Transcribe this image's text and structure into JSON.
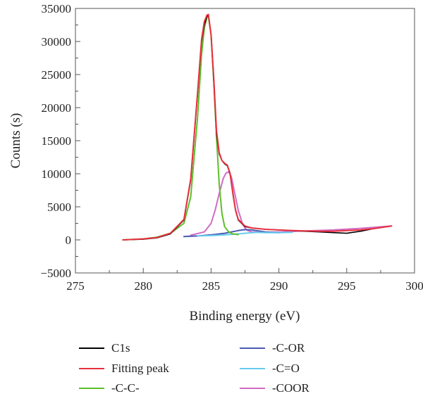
{
  "chart_data": {
    "type": "line",
    "xlabel": "Binding energy (eV)",
    "ylabel": "Counts (s)",
    "xlim": [
      275,
      300
    ],
    "ylim": [
      -5000,
      35000
    ],
    "xticks": [
      275,
      280,
      285,
      290,
      295,
      300
    ],
    "yticks": [
      -5000,
      0,
      5000,
      10000,
      15000,
      20000,
      25000,
      30000,
      35000
    ],
    "xtick_labels": [
      "275",
      "280",
      "285",
      "290",
      "295",
      "300"
    ],
    "ytick_labels": [
      "−5000",
      "0",
      "5000",
      "10000",
      "15000",
      "20000",
      "25000",
      "30000",
      "35000"
    ],
    "legend_position": "bottom",
    "series": [
      {
        "name": "C1s",
        "color": "#000000",
        "x": [
          278.5,
          280,
          281,
          282,
          283,
          283.5,
          284,
          284.3,
          284.5,
          284.7,
          284.8,
          285,
          285.2,
          285.4,
          285.6,
          285.8,
          286,
          286.2,
          286.4,
          286.6,
          286.8,
          287,
          287.5,
          288,
          288.5,
          289,
          290,
          291,
          292,
          293,
          294,
          295,
          296,
          297,
          298.3
        ],
        "y": [
          0,
          100,
          300,
          900,
          3000,
          9000,
          22000,
          30000,
          32500,
          33800,
          34000,
          31000,
          24000,
          16000,
          13000,
          12000,
          11500,
          11200,
          10000,
          7000,
          4500,
          3000,
          2000,
          1800,
          1700,
          1600,
          1500,
          1400,
          1300,
          1200,
          1100,
          1000,
          1300,
          1700,
          2100
        ]
      },
      {
        "name": "Fitting peak",
        "color": "#e8313f",
        "x": [
          278.5,
          280,
          281,
          282,
          283,
          283.5,
          284,
          284.3,
          284.5,
          284.7,
          284.8,
          285,
          285.2,
          285.4,
          285.6,
          285.8,
          286,
          286.2,
          286.4,
          286.6,
          286.8,
          287,
          287.5,
          288,
          288.5,
          289,
          290,
          291,
          292,
          293,
          294,
          295,
          296,
          297,
          298.3
        ],
        "y": [
          0,
          150,
          350,
          1000,
          3100,
          9200,
          22200,
          30300,
          33000,
          34000,
          34100,
          31000,
          24500,
          16500,
          13200,
          12000,
          11600,
          11300,
          10100,
          7200,
          4600,
          3100,
          2100,
          1800,
          1700,
          1600,
          1500,
          1400,
          1350,
          1300,
          1300,
          1400,
          1500,
          1700,
          2100
        ]
      },
      {
        "name": "-C-C-",
        "color": "#5cbf2a",
        "x": [
          278.5,
          280,
          281,
          282,
          283,
          283.5,
          284,
          284.3,
          284.5,
          284.7,
          284.8,
          285,
          285.2,
          285.4,
          285.6,
          285.8,
          286,
          286.3,
          286.6,
          287
        ],
        "y": [
          0,
          150,
          400,
          1000,
          2500,
          6500,
          18500,
          28000,
          32000,
          33700,
          33800,
          31000,
          24000,
          15500,
          8500,
          4000,
          2000,
          1200,
          900,
          800
        ]
      },
      {
        "name": "-C-OR",
        "color": "#4a5ab0",
        "x": [
          283,
          284,
          285,
          286,
          286.5,
          287,
          287.5,
          288,
          288.5,
          289,
          290
        ],
        "y": [
          500,
          600,
          750,
          1000,
          1200,
          1400,
          1550,
          1500,
          1350,
          1200,
          1100
        ]
      },
      {
        "name": "-C=O",
        "color": "#66ccee",
        "x": [
          284,
          285,
          286,
          287,
          287.5,
          288,
          288.5,
          289,
          290,
          291
        ],
        "y": [
          600,
          650,
          750,
          900,
          1000,
          1100,
          1150,
          1100,
          1100,
          1150
        ]
      },
      {
        "name": "-COOR",
        "color": "#d16bc4",
        "x": [
          283.5,
          284.5,
          285,
          285.3,
          285.6,
          285.9,
          286.1,
          286.3,
          286.5,
          286.7,
          287,
          287.3,
          287.6,
          288,
          288.5,
          289,
          290,
          292,
          294,
          296,
          298.3
        ],
        "y": [
          700,
          1200,
          2500,
          4500,
          7000,
          9300,
          10100,
          10300,
          9500,
          7500,
          4500,
          2500,
          1500,
          1200,
          1150,
          1150,
          1200,
          1350,
          1500,
          1750,
          2100
        ]
      }
    ]
  }
}
